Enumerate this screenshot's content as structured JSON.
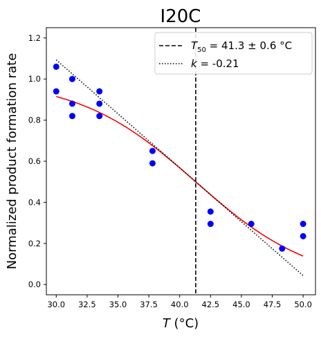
{
  "chart_data": {
    "type": "scatter",
    "title": "I20C",
    "xlabel": {
      "var": "T",
      "unit": " (°C)"
    },
    "ylabel": "Normalized product formation rate",
    "xlim": [
      29.2,
      51.0
    ],
    "ylim": [
      -0.05,
      1.25
    ],
    "xticks": [
      30.0,
      32.5,
      35.0,
      37.5,
      40.0,
      42.5,
      45.0,
      47.5,
      50.0
    ],
    "xtick_labels": [
      "30.0",
      "32.5",
      "35.0",
      "37.5",
      "40.0",
      "42.5",
      "45.0",
      "47.5",
      "50.0"
    ],
    "yticks": [
      0.0,
      0.2,
      0.4,
      0.6,
      0.8,
      1.0,
      1.2
    ],
    "ytick_labels": [
      "0.0",
      "0.2",
      "0.4",
      "0.6",
      "0.8",
      "1.0",
      "1.2"
    ],
    "grid": false,
    "legend_position": "top-right",
    "series": [
      {
        "kind": "scatter",
        "color": "#0000ff",
        "x": [
          30.0,
          30.0,
          31.3,
          31.3,
          31.3,
          33.5,
          33.5,
          33.5,
          37.8,
          37.8,
          42.5,
          42.5,
          45.8,
          48.3,
          50.0,
          50.0
        ],
        "y": [
          1.06,
          0.94,
          1.0,
          0.88,
          0.82,
          0.94,
          0.88,
          0.82,
          0.65,
          0.59,
          0.355,
          0.295,
          0.295,
          0.175,
          0.295,
          0.235
        ]
      },
      {
        "kind": "sigmoid-fit",
        "color": "#ff0000",
        "x_range": [
          30.0,
          50.0
        ],
        "midpoint": 41.3,
        "amplitude": 1.0,
        "slope": 0.21
      },
      {
        "kind": "vline",
        "color": "#000000",
        "dash": "dashed",
        "x": 41.3,
        "legend_label": {
          "sym": "T",
          "sub": "50",
          "rest": " = 41.3 ± 0.6 °C"
        }
      },
      {
        "kind": "tangent",
        "color": "#000000",
        "dash": "dotted",
        "x_range": [
          30.0,
          50.0
        ],
        "x0": 41.3,
        "y0": 0.5,
        "slope": -0.0525,
        "legend_label": {
          "sym": "k",
          "rest": " = -0.21"
        }
      }
    ]
  }
}
